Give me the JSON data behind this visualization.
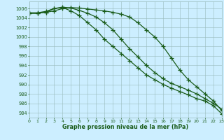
{
  "x": [
    0,
    1,
    2,
    3,
    4,
    5,
    6,
    7,
    8,
    9,
    10,
    11,
    12,
    13,
    14,
    15,
    16,
    17,
    18,
    19,
    20,
    21,
    22,
    23
  ],
  "line1": [
    1005.0,
    1005.0,
    1005.2,
    1005.5,
    1006.0,
    1006.2,
    1006.1,
    1005.9,
    1005.7,
    1005.5,
    1005.2,
    1004.8,
    1004.2,
    1003.0,
    1001.5,
    1000.0,
    998.0,
    995.5,
    993.0,
    991.0,
    989.5,
    988.0,
    986.5,
    984.5
  ],
  "line2": [
    1005.1,
    1005.1,
    1005.4,
    1006.0,
    1006.3,
    1006.1,
    1005.6,
    1005.0,
    1004.2,
    1003.0,
    1001.5,
    999.5,
    997.5,
    995.8,
    994.0,
    992.5,
    991.2,
    990.2,
    989.5,
    988.8,
    988.0,
    987.0,
    986.0,
    984.8
  ],
  "line3": [
    1005.0,
    1005.0,
    1005.2,
    1006.0,
    1006.2,
    1005.5,
    1004.5,
    1003.0,
    1001.5,
    999.5,
    998.0,
    996.5,
    995.0,
    993.5,
    992.0,
    991.0,
    990.0,
    989.2,
    988.5,
    987.8,
    987.0,
    986.5,
    985.5,
    983.8
  ],
  "line_color": "#1a5c1a",
  "bg_color": "#cceeff",
  "grid_color": "#99bbbb",
  "xlabel": "Graphe pression niveau de la mer (hPa)",
  "ylabel_ticks": [
    984,
    986,
    988,
    990,
    992,
    994,
    996,
    998,
    1000,
    1002,
    1004,
    1006
  ],
  "ylim": [
    983.0,
    1007.5
  ],
  "xlim": [
    0,
    23
  ],
  "xticks": [
    0,
    1,
    2,
    3,
    4,
    5,
    6,
    7,
    8,
    9,
    10,
    11,
    12,
    13,
    14,
    15,
    16,
    17,
    18,
    19,
    20,
    21,
    22,
    23
  ],
  "marker": "+",
  "markersize": 4,
  "linewidth": 0.9
}
